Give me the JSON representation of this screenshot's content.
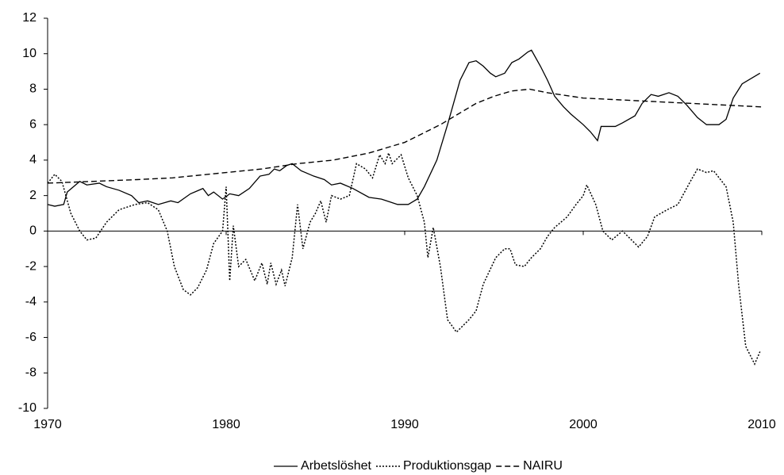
{
  "chart_data": {
    "type": "line",
    "series": [
      {
        "name": "Arbetslöshet",
        "color": "#000000",
        "style": "solid",
        "x": [
          1970.0,
          1970.4,
          1970.9,
          1971.1,
          1971.8,
          1972.2,
          1972.9,
          1973.3,
          1974.0,
          1974.7,
          1975.1,
          1975.6,
          1976.2,
          1976.9,
          1977.3,
          1978.0,
          1978.7,
          1979.0,
          1979.3,
          1979.8,
          1980.2,
          1980.7,
          1981.3,
          1981.9,
          1982.4,
          1982.7,
          1983.0,
          1983.4,
          1983.7,
          1984.2,
          1984.9,
          1985.5,
          1985.9,
          1986.4,
          1987.1,
          1988.0,
          1988.7,
          1989.6,
          1990.2,
          1990.7,
          1991.1,
          1991.8,
          1992.4,
          1993.1,
          1993.6,
          1994.0,
          1994.4,
          1994.8,
          1995.1,
          1995.6,
          1996.0,
          1996.4,
          1996.9,
          1997.1,
          1997.6,
          1998.0,
          1998.4,
          1998.9,
          1999.3,
          2000.0,
          2000.4,
          2000.8,
          2001.0,
          2001.8,
          2002.2,
          2002.9,
          2003.3,
          2003.8,
          2004.2,
          2004.8,
          2005.3,
          2005.8,
          2006.4,
          2006.9,
          2007.6,
          2008.0,
          2008.4,
          2008.9,
          2009.9
        ],
        "values": [
          1.5,
          1.4,
          1.5,
          2.2,
          2.8,
          2.6,
          2.7,
          2.5,
          2.3,
          2.0,
          1.6,
          1.7,
          1.5,
          1.7,
          1.6,
          2.1,
          2.4,
          2.0,
          2.2,
          1.8,
          2.1,
          2.0,
          2.4,
          3.1,
          3.2,
          3.5,
          3.4,
          3.7,
          3.8,
          3.4,
          3.1,
          2.9,
          2.6,
          2.7,
          2.4,
          1.9,
          1.8,
          1.5,
          1.5,
          1.8,
          2.5,
          4.0,
          6.0,
          8.5,
          9.5,
          9.6,
          9.3,
          8.9,
          8.7,
          8.9,
          9.5,
          9.7,
          10.1,
          10.2,
          9.3,
          8.5,
          7.6,
          7.0,
          6.6,
          6.0,
          5.6,
          5.1,
          5.9,
          5.9,
          6.1,
          6.5,
          7.2,
          7.7,
          7.6,
          7.8,
          7.6,
          7.1,
          6.4,
          6.0,
          6.0,
          6.3,
          7.5,
          8.3,
          8.9
        ]
      },
      {
        "name": "Produktionsgap",
        "color": "#000000",
        "style": "dotted",
        "x": [
          1970.0,
          1970.4,
          1970.8,
          1971.3,
          1971.8,
          1972.2,
          1972.7,
          1973.3,
          1974.0,
          1974.9,
          1975.6,
          1976.2,
          1976.7,
          1977.1,
          1977.6,
          1978.0,
          1978.4,
          1978.9,
          1979.3,
          1979.8,
          1980.0,
          1980.2,
          1980.4,
          1980.7,
          1981.1,
          1981.6,
          1982.0,
          1982.3,
          1982.5,
          1982.8,
          1983.1,
          1983.3,
          1983.7,
          1984.0,
          1984.3,
          1984.7,
          1985.0,
          1985.3,
          1985.6,
          1985.9,
          1986.4,
          1986.9,
          1987.3,
          1987.8,
          1988.2,
          1988.6,
          1988.9,
          1989.1,
          1989.3,
          1989.8,
          1990.2,
          1990.7,
          1991.1,
          1991.3,
          1991.6,
          1992.0,
          1992.4,
          1992.9,
          1993.6,
          1994.0,
          1994.4,
          1995.1,
          1995.6,
          1995.9,
          1996.2,
          1996.7,
          1997.1,
          1997.6,
          1998.0,
          1998.4,
          1999.1,
          1999.6,
          2000.0,
          2000.2,
          2000.7,
          2001.1,
          2001.6,
          2002.2,
          2002.7,
          2003.1,
          2003.6,
          2004.0,
          2004.7,
          2005.3,
          2006.0,
          2006.4,
          2006.9,
          2007.3,
          2008.0,
          2008.4,
          2008.7,
          2009.1,
          2009.6,
          2009.9
        ],
        "values": [
          2.7,
          3.2,
          2.8,
          1.0,
          0.0,
          -0.5,
          -0.4,
          0.5,
          1.2,
          1.5,
          1.6,
          1.2,
          0.0,
          -2.0,
          -3.3,
          -3.6,
          -3.2,
          -2.2,
          -0.7,
          0.0,
          2.5,
          -2.8,
          0.3,
          -2.0,
          -1.6,
          -2.8,
          -1.8,
          -3.0,
          -1.8,
          -3.0,
          -2.2,
          -3.1,
          -1.5,
          1.5,
          -1.0,
          0.5,
          1.0,
          1.7,
          0.5,
          2.0,
          1.8,
          2.0,
          3.8,
          3.5,
          3.0,
          4.3,
          3.8,
          4.4,
          3.8,
          4.3,
          3.0,
          2.0,
          0.5,
          -1.5,
          0.2,
          -2.0,
          -5.0,
          -5.7,
          -5.0,
          -4.5,
          -3.0,
          -1.5,
          -1.0,
          -1.0,
          -1.9,
          -2.0,
          -1.5,
          -1.0,
          -0.3,
          0.2,
          0.8,
          1.5,
          2.0,
          2.6,
          1.5,
          0.0,
          -0.5,
          0.0,
          -0.5,
          -0.9,
          -0.3,
          0.8,
          1.2,
          1.5,
          2.8,
          3.5,
          3.3,
          3.4,
          2.5,
          0.5,
          -3.0,
          -6.5,
          -7.5,
          -6.8
        ]
      },
      {
        "name": "NAIRU",
        "color": "#000000",
        "style": "dashed",
        "x": [
          1970,
          1975,
          1977,
          1980,
          1982,
          1984,
          1986,
          1988,
          1990,
          1992,
          1993,
          1994,
          1995,
          1996,
          1997,
          1998,
          2000,
          2002,
          2004,
          2006,
          2008,
          2010
        ],
        "values": [
          2.7,
          2.9,
          3.0,
          3.3,
          3.5,
          3.8,
          4.0,
          4.4,
          5.0,
          6.0,
          6.6,
          7.2,
          7.6,
          7.9,
          8.0,
          7.8,
          7.5,
          7.4,
          7.3,
          7.2,
          7.1,
          7.0
        ]
      }
    ],
    "xlim": [
      1970,
      2010
    ],
    "xticks": [
      1970,
      1980,
      1990,
      2000,
      2010
    ],
    "ylim": [
      -10,
      12
    ],
    "yticks": [
      -10,
      -8,
      -6,
      -4,
      -2,
      0,
      2,
      4,
      6,
      8,
      10,
      12
    ],
    "grid": false,
    "legend": "bottom"
  }
}
